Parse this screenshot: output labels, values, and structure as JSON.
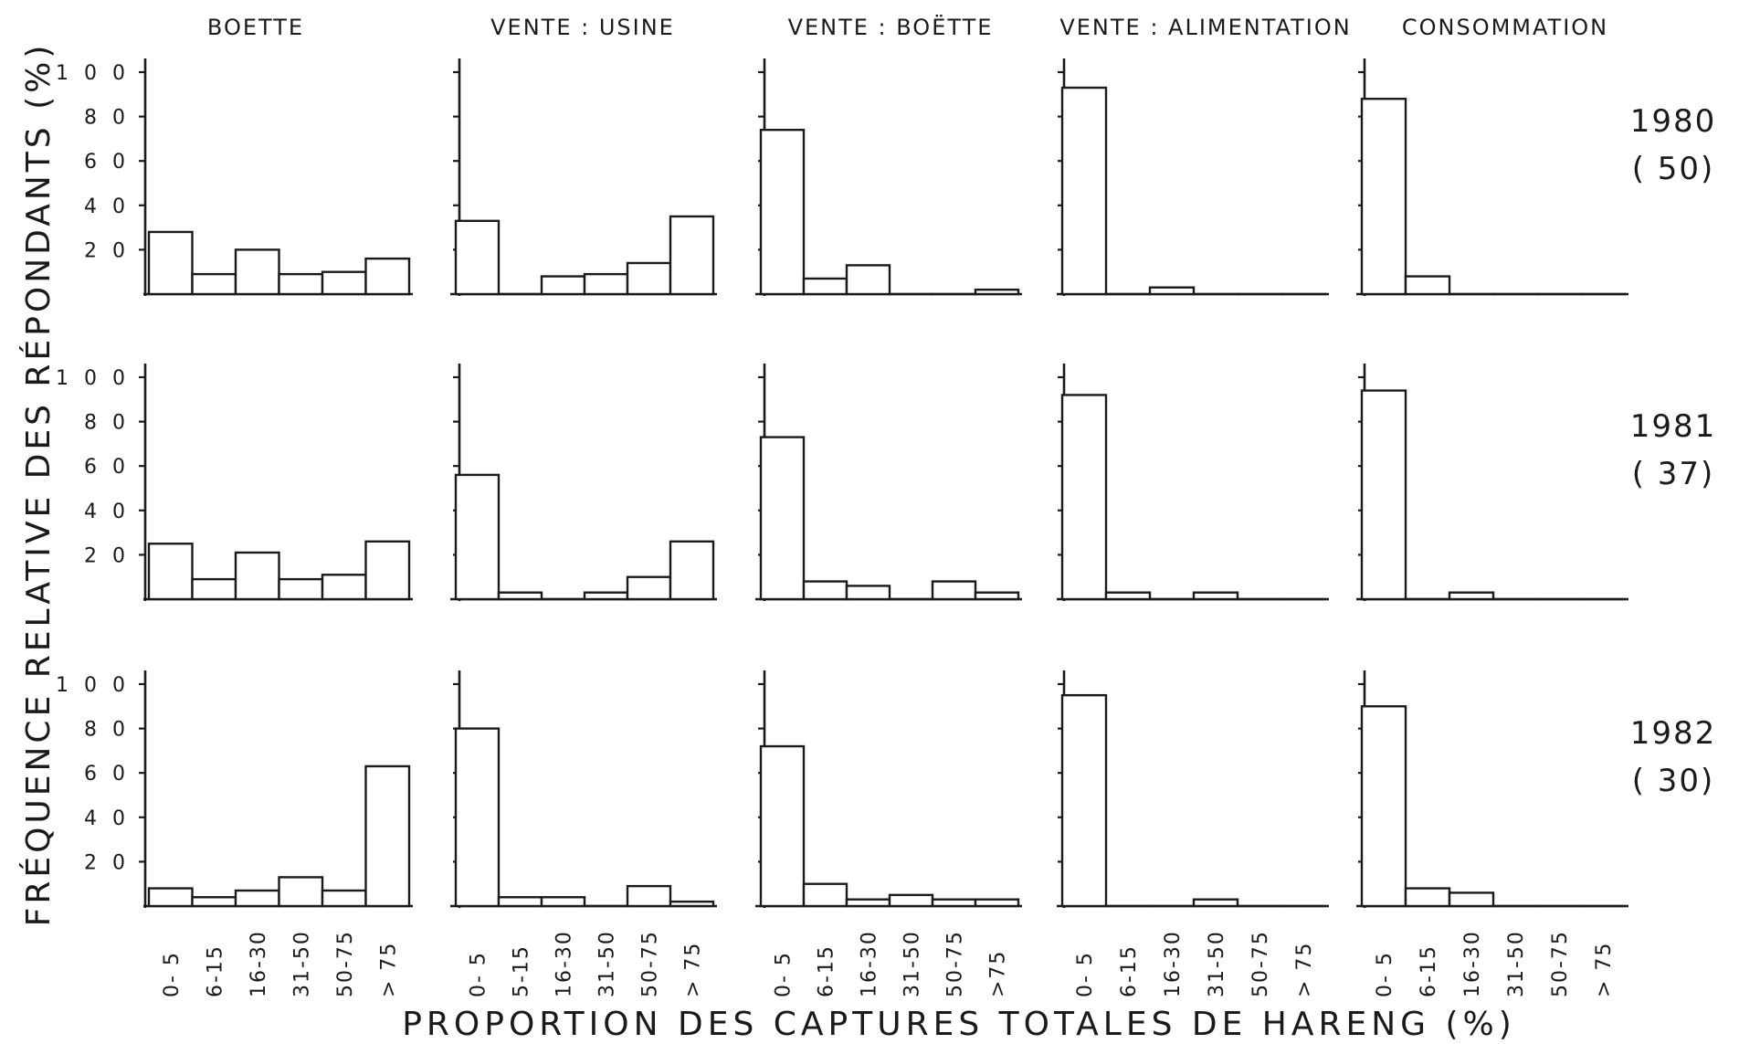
{
  "chart_data": {
    "type": "bar",
    "ylabel": "FRÉQUENCE RELATIVE DES RÉPONDANTS (%)",
    "xlabel": "PROPORTION DES CAPTURES TOTALES DE HARENG (%)",
    "ylim": [
      0,
      100
    ],
    "yticks": [
      "2 0",
      "4 0",
      "6 0",
      "8 0",
      "1 0 0"
    ],
    "columns": [
      "BOETTE",
      "VENTE : USINE",
      "VENTE : BOËTTE",
      "VENTE : ALIMENTATION",
      "CONSOMMATION"
    ],
    "column_categories": [
      [
        "0- 5",
        "6-15",
        "16-30",
        "31-50",
        "50-75",
        "> 75"
      ],
      [
        "0- 5",
        "5-15",
        "16-30",
        "31-50",
        "50-75",
        "> 75"
      ],
      [
        "0- 5",
        "6-15",
        "16-30",
        "31-50",
        "50-75",
        ">75"
      ],
      [
        "0- 5",
        "6-15",
        "16-30",
        "31-50",
        "50-75",
        "> 75"
      ],
      [
        "0- 5",
        "6-15",
        "16-30",
        "31-50",
        "50-75",
        "> 75"
      ]
    ],
    "rows": [
      {
        "year": "1980",
        "n": "( 50)",
        "values": [
          [
            28,
            9,
            20,
            9,
            10,
            16
          ],
          [
            33,
            0,
            8,
            9,
            14,
            35
          ],
          [
            74,
            7,
            13,
            0,
            0,
            2
          ],
          [
            93,
            0,
            3,
            0,
            0,
            0
          ],
          [
            88,
            8,
            0,
            0,
            0,
            0
          ]
        ]
      },
      {
        "year": "1981",
        "n": "( 37)",
        "values": [
          [
            25,
            9,
            21,
            9,
            11,
            26
          ],
          [
            56,
            3,
            0,
            3,
            10,
            26
          ],
          [
            73,
            8,
            6,
            0,
            8,
            3
          ],
          [
            92,
            3,
            0,
            3,
            0,
            0
          ],
          [
            94,
            0,
            3,
            0,
            0,
            0
          ]
        ]
      },
      {
        "year": "1982",
        "n": "( 30)",
        "values": [
          [
            8,
            4,
            7,
            13,
            7,
            63
          ],
          [
            80,
            4,
            4,
            0,
            9,
            2
          ],
          [
            72,
            10,
            3,
            5,
            3,
            3
          ],
          [
            95,
            0,
            0,
            3,
            0,
            0
          ],
          [
            90,
            8,
            6,
            0,
            0,
            0
          ]
        ]
      }
    ]
  }
}
